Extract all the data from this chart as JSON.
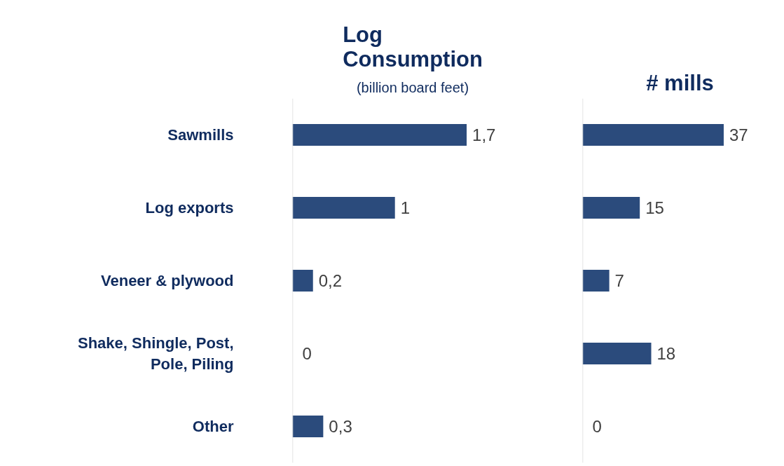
{
  "chart_data": [
    {
      "type": "bar",
      "orientation": "horizontal",
      "title": "Log Consumption",
      "subtitle": "(billion board feet)",
      "categories": [
        "Sawmills",
        "Log exports",
        "Veneer & plywood",
        "Shake, Shingle, Post, Pole, Piling",
        "Other"
      ],
      "values": [
        1.7,
        1,
        0.2,
        0,
        0.3
      ],
      "value_labels": [
        "1,7",
        "1",
        "0,2",
        "0",
        "0,3"
      ],
      "color": "#2b4b7c",
      "grid": false
    },
    {
      "type": "bar",
      "orientation": "horizontal",
      "title": "# mills",
      "categories": [
        null,
        null,
        null,
        null,
        null
      ],
      "values": [
        37,
        15,
        7,
        18,
        0
      ],
      "data_labels": true,
      "color": "#2b4b7c",
      "grid": false
    }
  ]
}
